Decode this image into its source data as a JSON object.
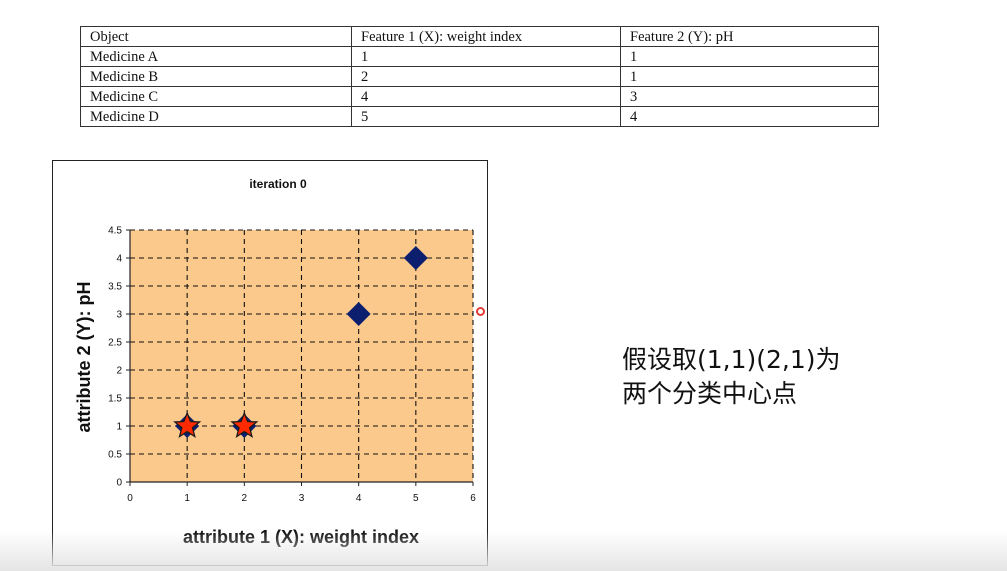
{
  "table": {
    "headers": [
      "Object",
      "Feature 1 (X): weight index",
      "Feature 2 (Y):  pH"
    ],
    "rows": [
      [
        "Medicine A",
        "1",
        "1"
      ],
      [
        "Medicine B",
        "2",
        "1"
      ],
      [
        "Medicine C",
        "4",
        "3"
      ],
      [
        "Medicine D",
        "5",
        "4"
      ]
    ]
  },
  "chart_data": {
    "type": "scatter",
    "title": "iteration 0",
    "xlabel": "attribute 1 (X): weight index",
    "ylabel": "attribute 2 (Y): pH",
    "xlim": [
      0,
      6
    ],
    "ylim": [
      0,
      4.5
    ],
    "xticks": [
      "0",
      "1",
      "2",
      "3",
      "4",
      "5",
      "6"
    ],
    "yticks": [
      "0",
      "0.5",
      "1",
      "1.5",
      "2",
      "2.5",
      "3",
      "3.5",
      "4",
      "4.5"
    ],
    "grid": true,
    "series": [
      {
        "marker": "diamond",
        "color": "#0b1f6e",
        "points": [
          [
            1,
            1
          ],
          [
            2,
            1
          ],
          [
            4,
            3
          ],
          [
            5,
            4
          ]
        ]
      },
      {
        "marker": "star",
        "color": "#ff2a00",
        "points": [
          [
            1,
            1
          ],
          [
            2,
            1
          ]
        ]
      }
    ],
    "plot_background": "#fcc98d"
  },
  "annotation": {
    "line1": "假设取(1,1)(2,1)为",
    "line2": "两个分类中心点"
  }
}
